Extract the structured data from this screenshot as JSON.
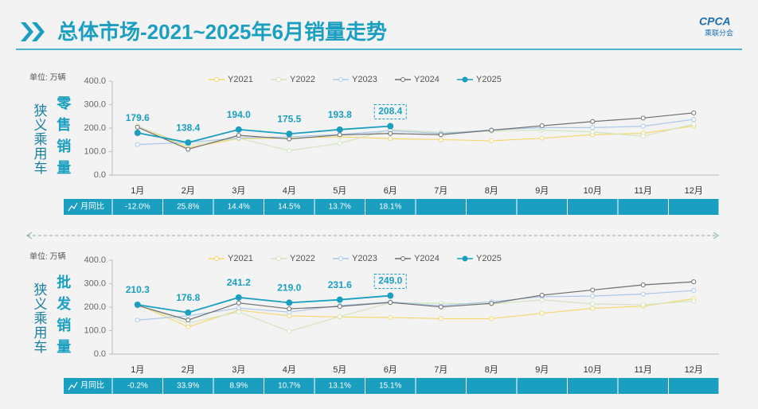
{
  "header": {
    "title": "总体市场-2021~2025年6月销量走势",
    "logo": "CPCA",
    "logo_sub": "乘联分会"
  },
  "chart_data": [
    {
      "type": "line",
      "group": "狭义乘用车",
      "title": "零售销量",
      "unit": "单位: 万辆",
      "categories": [
        "1月",
        "2月",
        "3月",
        "4月",
        "5月",
        "6月",
        "7月",
        "8月",
        "9月",
        "10月",
        "11月",
        "12月"
      ],
      "ylim": [
        0,
        400
      ],
      "yticks": [
        {
          "value": 0,
          "label": "0.0"
        },
        {
          "value": 100,
          "label": "100.0"
        },
        {
          "value": 200,
          "label": "200.0"
        },
        {
          "value": 300,
          "label": "300.0"
        },
        {
          "value": 400,
          "label": "400.0"
        }
      ],
      "series": [
        {
          "name": "Y2021",
          "color": "#f5d76e",
          "values": [
            209,
            117,
            155,
            157,
            163,
            155,
            151,
            146,
            157,
            172,
            178,
            209
          ]
        },
        {
          "name": "Y2022",
          "color": "#d3e4bf",
          "values": [
            208,
            127,
            157,
            104,
            135,
            194,
            182,
            187,
            192,
            184,
            165,
            217
          ]
        },
        {
          "name": "Y2023",
          "color": "#a9c8ec",
          "values": [
            130,
            139,
            158,
            163,
            173,
            189,
            177,
            192,
            202,
            202,
            208,
            237
          ]
        },
        {
          "name": "Y2024",
          "color": "#6d6d6d",
          "values": [
            204,
            110,
            169,
            154,
            171,
            177,
            172,
            191,
            210,
            228,
            243,
            265
          ]
        },
        {
          "name": "Y2025",
          "color": "#1a9fc0",
          "values": [
            179.6,
            138.4,
            194.0,
            175.5,
            193.8,
            208.4,
            null,
            null,
            null,
            null,
            null,
            null
          ],
          "value_labels": [
            "179.6",
            "138.4",
            "194.0",
            "175.5",
            "193.8",
            "208.4",
            null,
            null,
            null,
            null,
            null,
            null
          ]
        }
      ],
      "yoy_label": "月同比",
      "yoy_values": [
        -12.0,
        25.8,
        14.4,
        14.5,
        13.7,
        18.1
      ],
      "yoy_value_labels": [
        "-12.0%",
        "25.8%",
        "14.4%",
        "14.5%",
        "13.7%",
        "18.1%"
      ]
    },
    {
      "type": "line",
      "group": "狭义乘用车",
      "title": "批发销量",
      "unit": "单位: 万辆",
      "categories": [
        "1月",
        "2月",
        "3月",
        "4月",
        "5月",
        "6月",
        "7月",
        "8月",
        "9月",
        "10月",
        "11月",
        "12月"
      ],
      "ylim": [
        0,
        400
      ],
      "yticks": [
        {
          "value": 0,
          "label": "0.0"
        },
        {
          "value": 100,
          "label": "100.0"
        },
        {
          "value": 200,
          "label": "200.0"
        },
        {
          "value": 300,
          "label": "300.0"
        },
        {
          "value": 400,
          "label": "400.0"
        }
      ],
      "series": [
        {
          "name": "Y2021",
          "color": "#f5d76e",
          "values": [
            212,
            116,
            187,
            163,
            158,
            156,
            151,
            151,
            174,
            195,
            204,
            236
          ]
        },
        {
          "name": "Y2022",
          "color": "#d3e4bf",
          "values": [
            211,
            132,
            180,
            97,
            160,
            219,
            216,
            213,
            231,
            214,
            210,
            226
          ]
        },
        {
          "name": "Y2023",
          "color": "#a9c8ec",
          "values": [
            145,
            163,
            196,
            179,
            207,
            222,
            206,
            223,
            245,
            247,
            256,
            271
          ]
        },
        {
          "name": "Y2024",
          "color": "#6d6d6d",
          "values": [
            207,
            145,
            218,
            193,
            203,
            220,
            201,
            216,
            251,
            273,
            295,
            308
          ]
        },
        {
          "name": "Y2025",
          "color": "#1a9fc0",
          "values": [
            210.3,
            176.8,
            241.2,
            219.0,
            231.6,
            249.0,
            null,
            null,
            null,
            null,
            null,
            null
          ],
          "value_labels": [
            "210.3",
            "176.8",
            "241.2",
            "219.0",
            "231.6",
            "249.0",
            null,
            null,
            null,
            null,
            null,
            null
          ]
        }
      ],
      "yoy_label": "月同比",
      "yoy_values": [
        -0.2,
        33.9,
        8.9,
        10.7,
        13.1,
        15.1
      ],
      "yoy_value_labels": [
        "-0.2%",
        "33.9%",
        "8.9%",
        "10.7%",
        "13.1%",
        "15.1%"
      ]
    }
  ]
}
